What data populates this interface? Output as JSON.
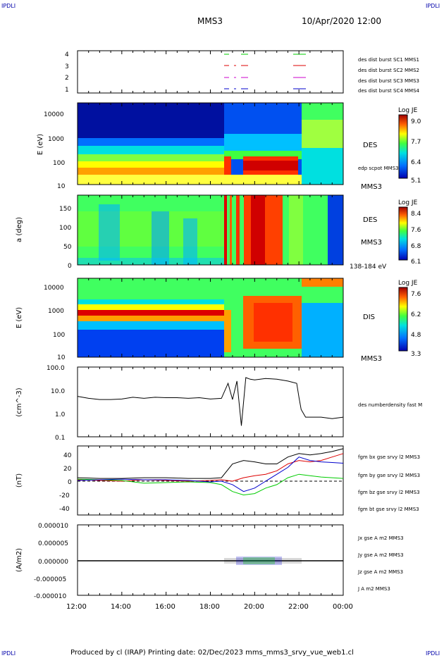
{
  "corners": {
    "tl": "IPDLI",
    "tr": "IPDLI",
    "bl": "IPDLI",
    "br": "IPDLI"
  },
  "header": {
    "spacecraft": "MMS3",
    "datetime": "10/Apr/2020 12:00"
  },
  "footer": {
    "text": "Produced by cl (IRAP)   Printing date: 02/Dec/2023   mms_mms3_srvy_vue_web1.cl"
  },
  "time_axis": {
    "ticks": [
      "12:00",
      "14:00",
      "16:00",
      "18:00",
      "20:00",
      "22:00",
      "00:00"
    ]
  },
  "colors": {
    "red": "#dd0000",
    "green": "#00cc00",
    "blue": "#0000cc",
    "magenta": "#cc00cc",
    "black": "#000000"
  },
  "chart_data": [
    {
      "type": "timeline",
      "id": "burst",
      "yticks": [
        "4",
        "3",
        "2",
        "1"
      ],
      "legend": [
        {
          "label": "des dist burst SC1 MMS1",
          "color": "#0000cc"
        },
        {
          "label": "des dist burst SC2 MMS2",
          "color": "#cc00cc"
        },
        {
          "label": "des dist burst SC3 MMS3",
          "color": "#dd0000"
        },
        {
          "label": "des dist burst SC4 MMS4",
          "color": "#00cc00"
        }
      ],
      "intervals_hours": [
        [
          18.6,
          18.8
        ],
        [
          19.2,
          19.6
        ],
        [
          21.8,
          22.3
        ]
      ]
    },
    {
      "type": "heatmap",
      "id": "des_energy",
      "ylabel": "E (eV)",
      "yticks": [
        "10000",
        "1000",
        "100",
        "10"
      ],
      "colorbar": {
        "title": "Log JE",
        "ticks": [
          "9.0",
          "7.7",
          "6.4",
          "5.1"
        ]
      },
      "right_labels": [
        "DES",
        "edp scpot MMS3",
        "MMS3"
      ]
    },
    {
      "type": "heatmap",
      "id": "des_pitch",
      "ylabel": "a (deg)",
      "yticks": [
        "150",
        "100",
        "50",
        "0"
      ],
      "colorbar": {
        "title": "Log JE",
        "ticks": [
          "8.4",
          "7.6",
          "6.8",
          "6.1"
        ]
      },
      "right_labels": [
        "DES",
        "MMS3",
        "138-184 eV"
      ]
    },
    {
      "type": "heatmap",
      "id": "dis_energy",
      "ylabel": "E (eV)",
      "yticks": [
        "10000",
        "1000",
        "100",
        "10"
      ],
      "colorbar": {
        "title": "Log JE",
        "ticks": [
          "7.6",
          "6.2",
          "4.8",
          "3.3"
        ]
      },
      "right_labels": [
        "DIS",
        "MMS3"
      ]
    },
    {
      "type": "line",
      "id": "density",
      "ylabel": "(cm^-3)",
      "yticks": [
        "100.0",
        "10.0",
        "1.0",
        "0.1"
      ],
      "legend": [
        {
          "label": "des numberdensity fast M",
          "color": "#000000"
        }
      ],
      "x_hours": [
        12,
        12.5,
        13,
        13.5,
        14,
        14.5,
        15,
        15.5,
        16,
        16.5,
        17,
        17.5,
        18,
        18.5,
        18.8,
        19.0,
        19.2,
        19.4,
        19.6,
        19.8,
        20.0,
        20.5,
        21.0,
        21.5,
        21.9,
        22.0,
        22.1,
        22.3,
        23.0,
        23.5,
        24
      ],
      "y": [
        5.5,
        4.5,
        4.0,
        4.0,
        4.2,
        5.0,
        4.5,
        5.0,
        4.8,
        4.8,
        4.5,
        4.8,
        4.2,
        4.5,
        20,
        4,
        25,
        0.3,
        35,
        30,
        28,
        32,
        30,
        25,
        20,
        5,
        1.5,
        0.7,
        0.7,
        0.6,
        0.7
      ]
    },
    {
      "type": "line",
      "id": "bfield",
      "ylabel": "(nT)",
      "yticks": [
        "40",
        "20",
        "0",
        "-20",
        "-40"
      ],
      "legend": [
        {
          "label": "fgm bx gse srvy l2 MMS3",
          "color": "#dd0000"
        },
        {
          "label": "fgm by gse srvy l2 MMS3",
          "color": "#00cc00"
        },
        {
          "label": "fgm bz gse srvy l2 MMS3",
          "color": "#0000cc"
        },
        {
          "label": "fgm bt gse srvy l2 MMS3",
          "color": "#000000"
        }
      ],
      "x_hours": [
        12,
        13,
        14,
        15,
        16,
        17,
        18,
        18.5,
        19,
        19.5,
        20,
        20.5,
        21,
        21.5,
        22,
        22.5,
        23,
        23.5,
        24
      ],
      "series": [
        {
          "name": "bx",
          "values": [
            2,
            1,
            0,
            2,
            1,
            0,
            1,
            2,
            0,
            5,
            8,
            10,
            15,
            25,
            30,
            28,
            30,
            35,
            40
          ]
        },
        {
          "name": "by",
          "values": [
            3,
            2,
            1,
            -3,
            -2,
            -1,
            -2,
            -5,
            -15,
            -20,
            -18,
            -10,
            -5,
            5,
            10,
            8,
            6,
            5,
            4
          ]
        },
        {
          "name": "bz",
          "values": [
            1,
            2,
            3,
            2,
            2,
            1,
            -1,
            0,
            -5,
            -15,
            -10,
            0,
            10,
            20,
            35,
            30,
            28,
            27,
            26
          ]
        },
        {
          "name": "bt",
          "values": [
            5,
            4,
            4,
            5,
            5,
            4,
            4,
            5,
            25,
            30,
            28,
            25,
            25,
            35,
            40,
            38,
            40,
            43,
            47
          ]
        }
      ]
    },
    {
      "type": "line",
      "id": "current",
      "ylabel": "(A/m2)",
      "yticks": [
        "0.000010",
        "0.000005",
        "0.000000",
        "-0.000005",
        "-0.000010"
      ],
      "legend": [
        {
          "label": "Jx gse A m2 MMS3",
          "color": "#dd0000"
        },
        {
          "label": "Jy gse A m2 MMS3",
          "color": "#00cc00"
        },
        {
          "label": "Jz gse A m2 MMS3",
          "color": "#0000cc"
        },
        {
          "label": "J A m2 MMS3",
          "color": "#000000"
        }
      ]
    }
  ]
}
